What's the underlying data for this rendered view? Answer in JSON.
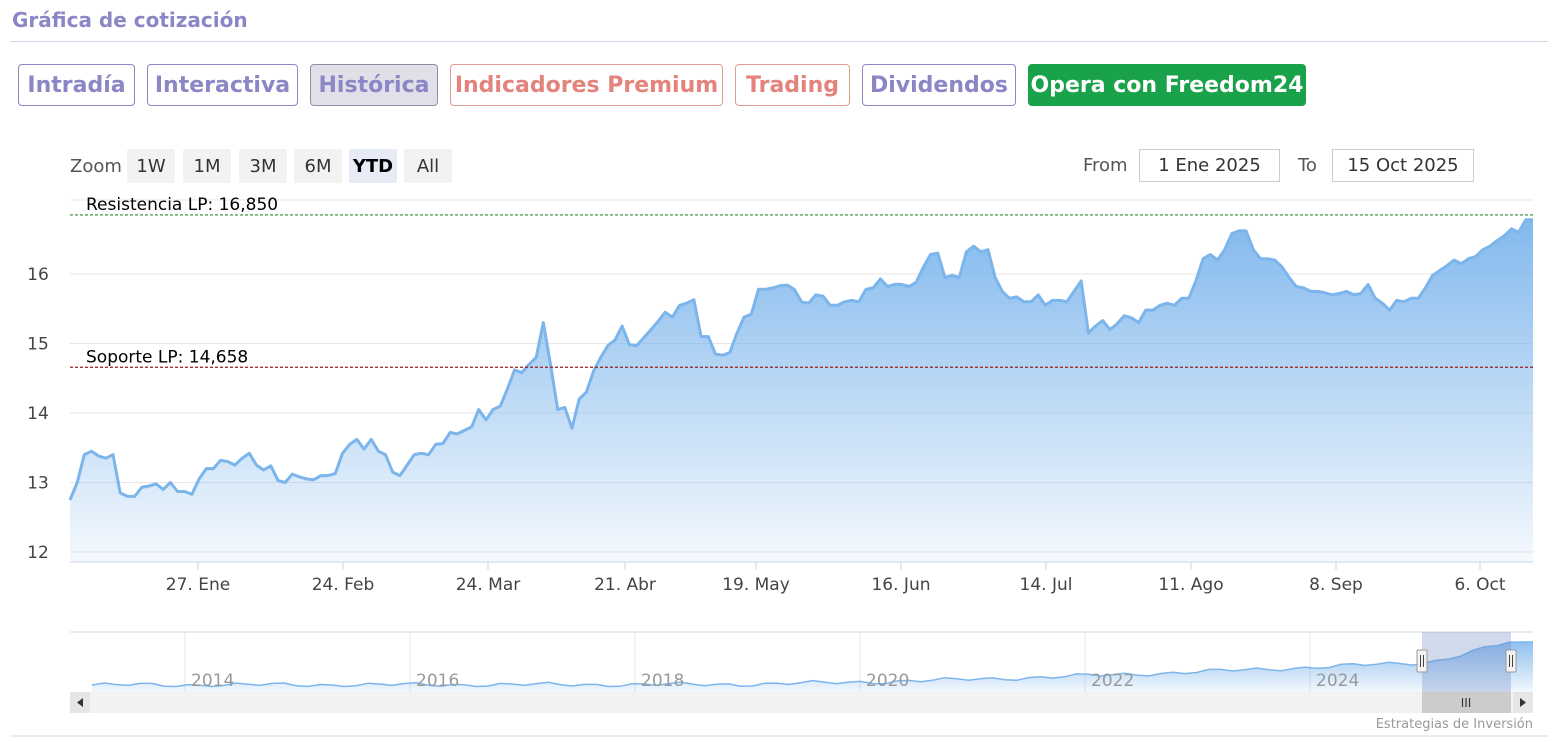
{
  "header": {
    "title": "Gráfica de cotización"
  },
  "tabs": [
    {
      "label": "Intradía",
      "style": "default"
    },
    {
      "label": "Interactiva",
      "style": "default"
    },
    {
      "label": "Histórica",
      "style": "active"
    },
    {
      "label": "Indicadores Premium",
      "style": "salmon"
    },
    {
      "label": "Trading",
      "style": "salmon"
    },
    {
      "label": "Dividendos",
      "style": "default"
    },
    {
      "label": "Opera con Freedom24",
      "style": "green"
    }
  ],
  "range_selector": {
    "zoom_label": "Zoom",
    "buttons": [
      "1W",
      "1M",
      "3M",
      "6M",
      "YTD",
      "All"
    ],
    "selected": "YTD",
    "from_label": "From",
    "from_value": "1 Ene 2025",
    "to_label": "To",
    "to_value": "15 Oct 2025"
  },
  "chart_data": {
    "type": "area",
    "y_ticks": [
      "12",
      "13",
      "14",
      "15",
      "16"
    ],
    "ylim": [
      11.9,
      16.95
    ],
    "x_ticks": [
      "27. Ene",
      "24. Feb",
      "24. Mar",
      "21. Abr",
      "19. May",
      "16. Jun",
      "14. Jul",
      "11. Ago",
      "8. Sep",
      "6. Oct"
    ],
    "grid": true,
    "lines": [
      {
        "label": "Resistencia LP: 16,850",
        "value": 16.85,
        "color": "#2e8b2e"
      },
      {
        "label": "Soporte LP: 14,658",
        "value": 14.658,
        "color": "#9b1c1c"
      }
    ],
    "series_color": "#7cb5ec",
    "values": [
      12.75,
      13.0,
      13.4,
      13.45,
      13.38,
      13.35,
      13.4,
      12.85,
      12.8,
      12.8,
      12.93,
      12.95,
      12.98,
      12.9,
      13.0,
      12.87,
      12.87,
      12.83,
      13.05,
      13.2,
      13.2,
      13.32,
      13.3,
      13.25,
      13.35,
      13.42,
      13.25,
      13.18,
      13.24,
      13.03,
      13.0,
      13.12,
      13.08,
      13.05,
      13.04,
      13.1,
      13.1,
      13.13,
      13.42,
      13.55,
      13.62,
      13.48,
      13.62,
      13.45,
      13.4,
      13.15,
      13.1,
      13.25,
      13.4,
      13.42,
      13.4,
      13.55,
      13.56,
      13.72,
      13.7,
      13.75,
      13.8,
      14.05,
      13.9,
      14.05,
      14.1,
      14.35,
      14.62,
      14.58,
      14.7,
      14.8,
      15.3,
      14.7,
      14.05,
      14.08,
      13.78,
      14.2,
      14.3,
      14.6,
      14.8,
      14.97,
      15.05,
      15.25,
      14.98,
      14.97,
      15.08,
      15.2,
      15.32,
      15.45,
      15.38,
      15.55,
      15.58,
      15.63,
      15.1,
      15.1,
      14.85,
      14.83,
      14.87,
      15.15,
      15.38,
      15.42,
      15.78,
      15.78,
      15.8,
      15.83,
      15.84,
      15.78,
      15.6,
      15.58,
      15.7,
      15.68,
      15.55,
      15.55,
      15.6,
      15.62,
      15.6,
      15.78,
      15.8,
      15.93,
      15.82,
      15.85,
      15.85,
      15.82,
      15.88,
      16.1,
      16.28,
      16.3,
      15.95,
      15.98,
      15.95,
      16.32,
      16.4,
      16.32,
      16.35,
      15.95,
      15.75,
      15.65,
      15.67,
      15.6,
      15.6,
      15.7,
      15.55,
      15.62,
      15.62,
      15.6,
      15.75,
      15.9,
      15.15,
      15.25,
      15.33,
      15.2,
      15.28,
      15.4,
      15.37,
      15.3,
      15.48,
      15.48,
      15.55,
      15.58,
      15.55,
      15.65,
      15.65,
      15.9,
      16.22,
      16.28,
      16.2,
      16.35,
      16.58,
      16.62,
      16.62,
      16.35,
      16.22,
      16.22,
      16.2,
      16.1,
      15.95,
      15.82,
      15.8,
      15.75,
      15.75,
      15.73,
      15.7,
      15.72,
      15.75,
      15.7,
      15.72,
      15.85,
      15.65,
      15.58,
      15.48,
      15.62,
      15.6,
      15.65,
      15.65,
      15.8,
      15.98,
      16.05,
      16.12,
      16.2,
      16.15,
      16.22,
      16.25,
      16.35,
      16.4,
      16.48,
      16.55,
      16.65,
      16.6,
      16.78,
      16.78
    ]
  },
  "navigator": {
    "year_labels": [
      "2014",
      "2016",
      "2018",
      "2020",
      "2022",
      "2024"
    ],
    "scroll_handle": "III"
  },
  "credits": "Estrategias de Inversión"
}
